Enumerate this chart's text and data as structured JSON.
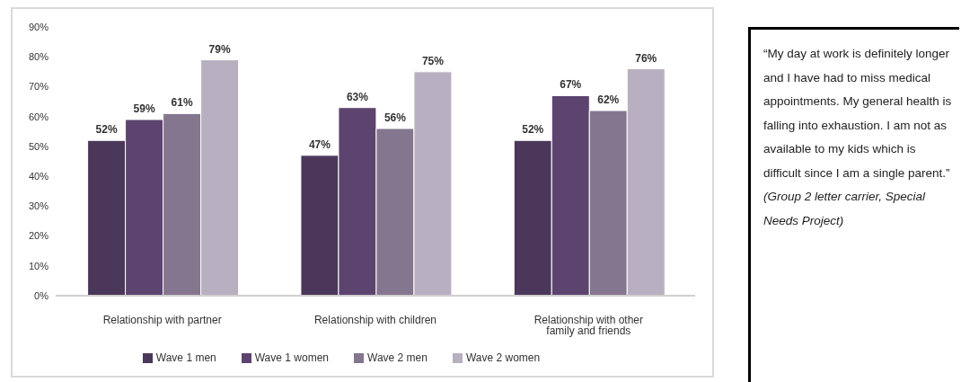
{
  "chart_data": {
    "type": "bar",
    "categories": [
      "Relationship with partner",
      "Relationship with children",
      "Relationship with other family and friends"
    ],
    "series": [
      {
        "name": "Wave 1 men",
        "color": "#4a3759",
        "values": [
          52,
          47,
          52
        ],
        "value_labels": [
          "52%",
          "47%",
          "52%"
        ]
      },
      {
        "name": "Wave 1 women",
        "color": "#5c446f",
        "values": [
          59,
          63,
          67
        ],
        "value_labels": [
          "59%",
          "63%",
          "67%"
        ]
      },
      {
        "name": "Wave 2 men",
        "color": "#85768f",
        "values": [
          61,
          56,
          62
        ],
        "value_labels": [
          "61%",
          "56%",
          "62%"
        ]
      },
      {
        "name": "Wave 2 women",
        "color": "#b8b0c0",
        "values": [
          79,
          75,
          76
        ],
        "value_labels": [
          "79%",
          "75%",
          "76%"
        ]
      }
    ],
    "ylim": [
      0,
      90
    ],
    "yticks": [
      {
        "value": 0,
        "label": "0%"
      },
      {
        "value": 10,
        "label": "10%"
      },
      {
        "value": 20,
        "label": "20%"
      },
      {
        "value": 30,
        "label": "30%"
      },
      {
        "value": 40,
        "label": "40%"
      },
      {
        "value": 50,
        "label": "50%"
      },
      {
        "value": 60,
        "label": "60%"
      },
      {
        "value": 70,
        "label": "70%"
      },
      {
        "value": 80,
        "label": "80%"
      },
      {
        "value": 90,
        "label": "90%"
      }
    ],
    "grid": false,
    "legend": "bottom",
    "annotations": [
      "“My day at work is definitely longer and I have had to miss medical appointments. My general health is falling into exhaustion. I am not as available to my kids which is difficult since I am a single parent.”",
      "(Group 2 letter carrier, Special Needs Project)"
    ]
  }
}
